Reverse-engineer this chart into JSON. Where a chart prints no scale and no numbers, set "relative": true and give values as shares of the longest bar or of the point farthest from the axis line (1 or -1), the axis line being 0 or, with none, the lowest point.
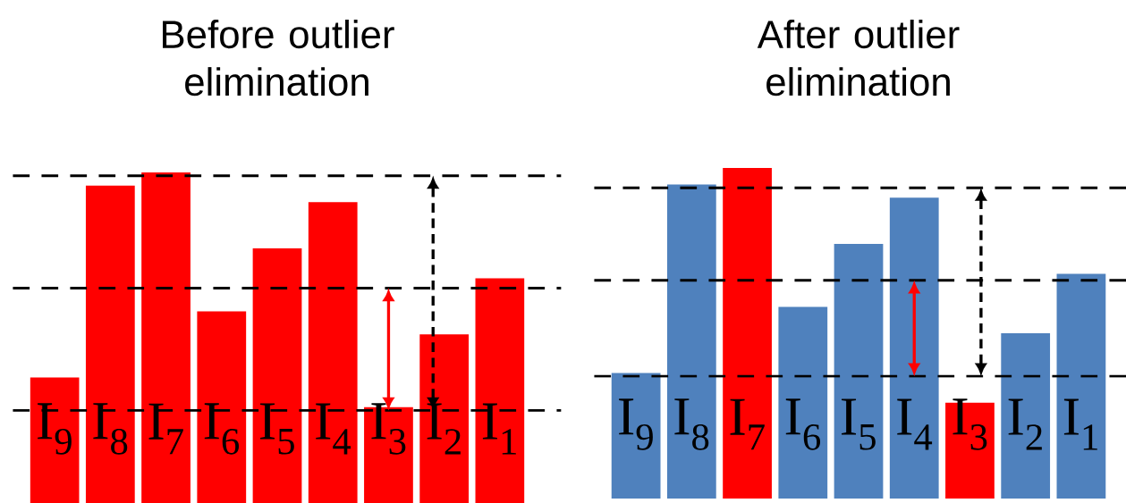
{
  "chart_data": [
    {
      "type": "bar",
      "title": "Before outlier elimination",
      "relative": true,
      "categories": [
        "I$_{9}$",
        "I$_{8}$",
        "I$_{7}$",
        "I$_{6}$",
        "I$_{5}$",
        "I$_{4}$",
        "I$_{3}$",
        "I$_{2}$",
        "I$_{1}$"
      ],
      "values": [
        0.38,
        0.96,
        1,
        0.58,
        0.77,
        0.91,
        0.29,
        0.51,
        0.68
      ],
      "colors": [
        "#ff0000",
        "#ff0000",
        "#ff0000",
        "#ff0000",
        "#ff0000",
        "#ff0000",
        "#ff0000",
        "#ff0000",
        "#ff0000"
      ],
      "ref_lines": [
        {
          "axis": "y",
          "value": 0.99,
          "color": "#000000",
          "line_style": "dashed"
        },
        {
          "axis": "y",
          "value": 0.65,
          "color": "#000000",
          "line_style": "dashed"
        },
        {
          "axis": "y",
          "value": 0.28,
          "color": "#000000",
          "line_style": "dashed"
        }
      ]
    },
    {
      "type": "bar",
      "title": "After outlier elimination",
      "relative": true,
      "categories": [
        "I$_{9}$",
        "I$_{8}$",
        "I$_{7}$",
        "I$_{6}$",
        "I$_{5}$",
        "I$_{4}$",
        "I$_{3}$",
        "I$_{2}$",
        "I$_{1}$"
      ],
      "values": [
        0.38,
        0.95,
        1,
        0.58,
        0.77,
        0.91,
        0.29,
        0.5,
        0.68
      ],
      "colors": [
        "#4f81bd",
        "#4f81bd",
        "#ff0000",
        "#4f81bd",
        "#4f81bd",
        "#4f81bd",
        "#ff0000",
        "#4f81bd",
        "#4f81bd"
      ],
      "ref_lines": [
        {
          "axis": "y",
          "value": 0.94,
          "color": "#000000",
          "line_style": "dashed"
        },
        {
          "axis": "y",
          "value": 0.66,
          "color": "#000000",
          "line_style": "dashed"
        },
        {
          "axis": "y",
          "value": 0.37,
          "color": "#000000",
          "line_style": "dashed"
        }
      ]
    }
  ]
}
